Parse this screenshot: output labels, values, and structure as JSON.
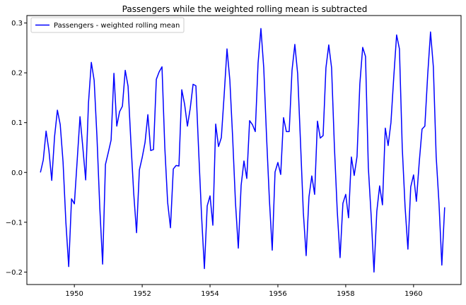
{
  "chart_data": {
    "type": "line",
    "title": "Passengers while the weighted rolling mean is subtracted",
    "xlabel": "",
    "ylabel": "",
    "xlim": [
      1948.6,
      1961.4
    ],
    "ylim": [
      -0.225,
      0.315
    ],
    "x_ticks": [
      1950,
      1952,
      1954,
      1956,
      1958,
      1960
    ],
    "x_tick_labels": [
      "1950",
      "1952",
      "1954",
      "1956",
      "1958",
      "1960"
    ],
    "y_ticks": [
      -0.2,
      -0.1,
      0.0,
      0.1,
      0.2,
      0.3
    ],
    "y_tick_labels": [
      "−0.2",
      "−0.1",
      "0.0",
      "0.1",
      "0.2",
      "0.3"
    ],
    "grid": false,
    "legend_position": "top-left",
    "x_start": "1949-01",
    "x_step": "monthly",
    "series": [
      {
        "name": "Passengers - weighted rolling mean",
        "color": "#0000ff",
        "values": [
          0.0,
          0.025,
          0.083,
          0.044,
          -0.016,
          0.072,
          0.125,
          0.096,
          0.021,
          -0.1,
          -0.189,
          -0.053,
          -0.063,
          0.024,
          0.112,
          0.05,
          -0.015,
          0.14,
          0.221,
          0.185,
          0.071,
          -0.071,
          -0.184,
          0.016,
          0.04,
          0.065,
          0.199,
          0.093,
          0.122,
          0.133,
          0.205,
          0.173,
          0.061,
          -0.042,
          -0.121,
          0.005,
          0.03,
          0.06,
          0.116,
          0.044,
          0.046,
          0.187,
          0.202,
          0.212,
          0.05,
          -0.06,
          -0.111,
          0.007,
          0.014,
          0.013,
          0.166,
          0.137,
          0.093,
          0.129,
          0.177,
          0.174,
          0.04,
          -0.087,
          -0.193,
          -0.067,
          -0.047,
          -0.106,
          0.097,
          0.052,
          0.07,
          0.156,
          0.248,
          0.186,
          0.07,
          -0.061,
          -0.152,
          -0.026,
          0.023,
          -0.012,
          0.104,
          0.096,
          0.082,
          0.22,
          0.289,
          0.21,
          0.071,
          -0.055,
          -0.156,
          0.001,
          0.02,
          -0.004,
          0.11,
          0.082,
          0.082,
          0.205,
          0.257,
          0.198,
          0.061,
          -0.08,
          -0.167,
          -0.049,
          -0.007,
          -0.044,
          0.103,
          0.069,
          0.074,
          0.21,
          0.256,
          0.21,
          0.051,
          -0.077,
          -0.171,
          -0.062,
          -0.044,
          -0.091,
          0.031,
          -0.006,
          0.032,
          0.178,
          0.251,
          0.233,
          0.01,
          -0.087,
          -0.2,
          -0.078,
          -0.027,
          -0.065,
          0.089,
          0.054,
          0.1,
          0.192,
          0.276,
          0.248,
          0.05,
          -0.069,
          -0.154,
          -0.029,
          -0.005,
          -0.058,
          0.02,
          0.087,
          0.093,
          0.196,
          0.282,
          0.212,
          0.032,
          -0.062,
          -0.186,
          -0.07
        ]
      }
    ]
  }
}
